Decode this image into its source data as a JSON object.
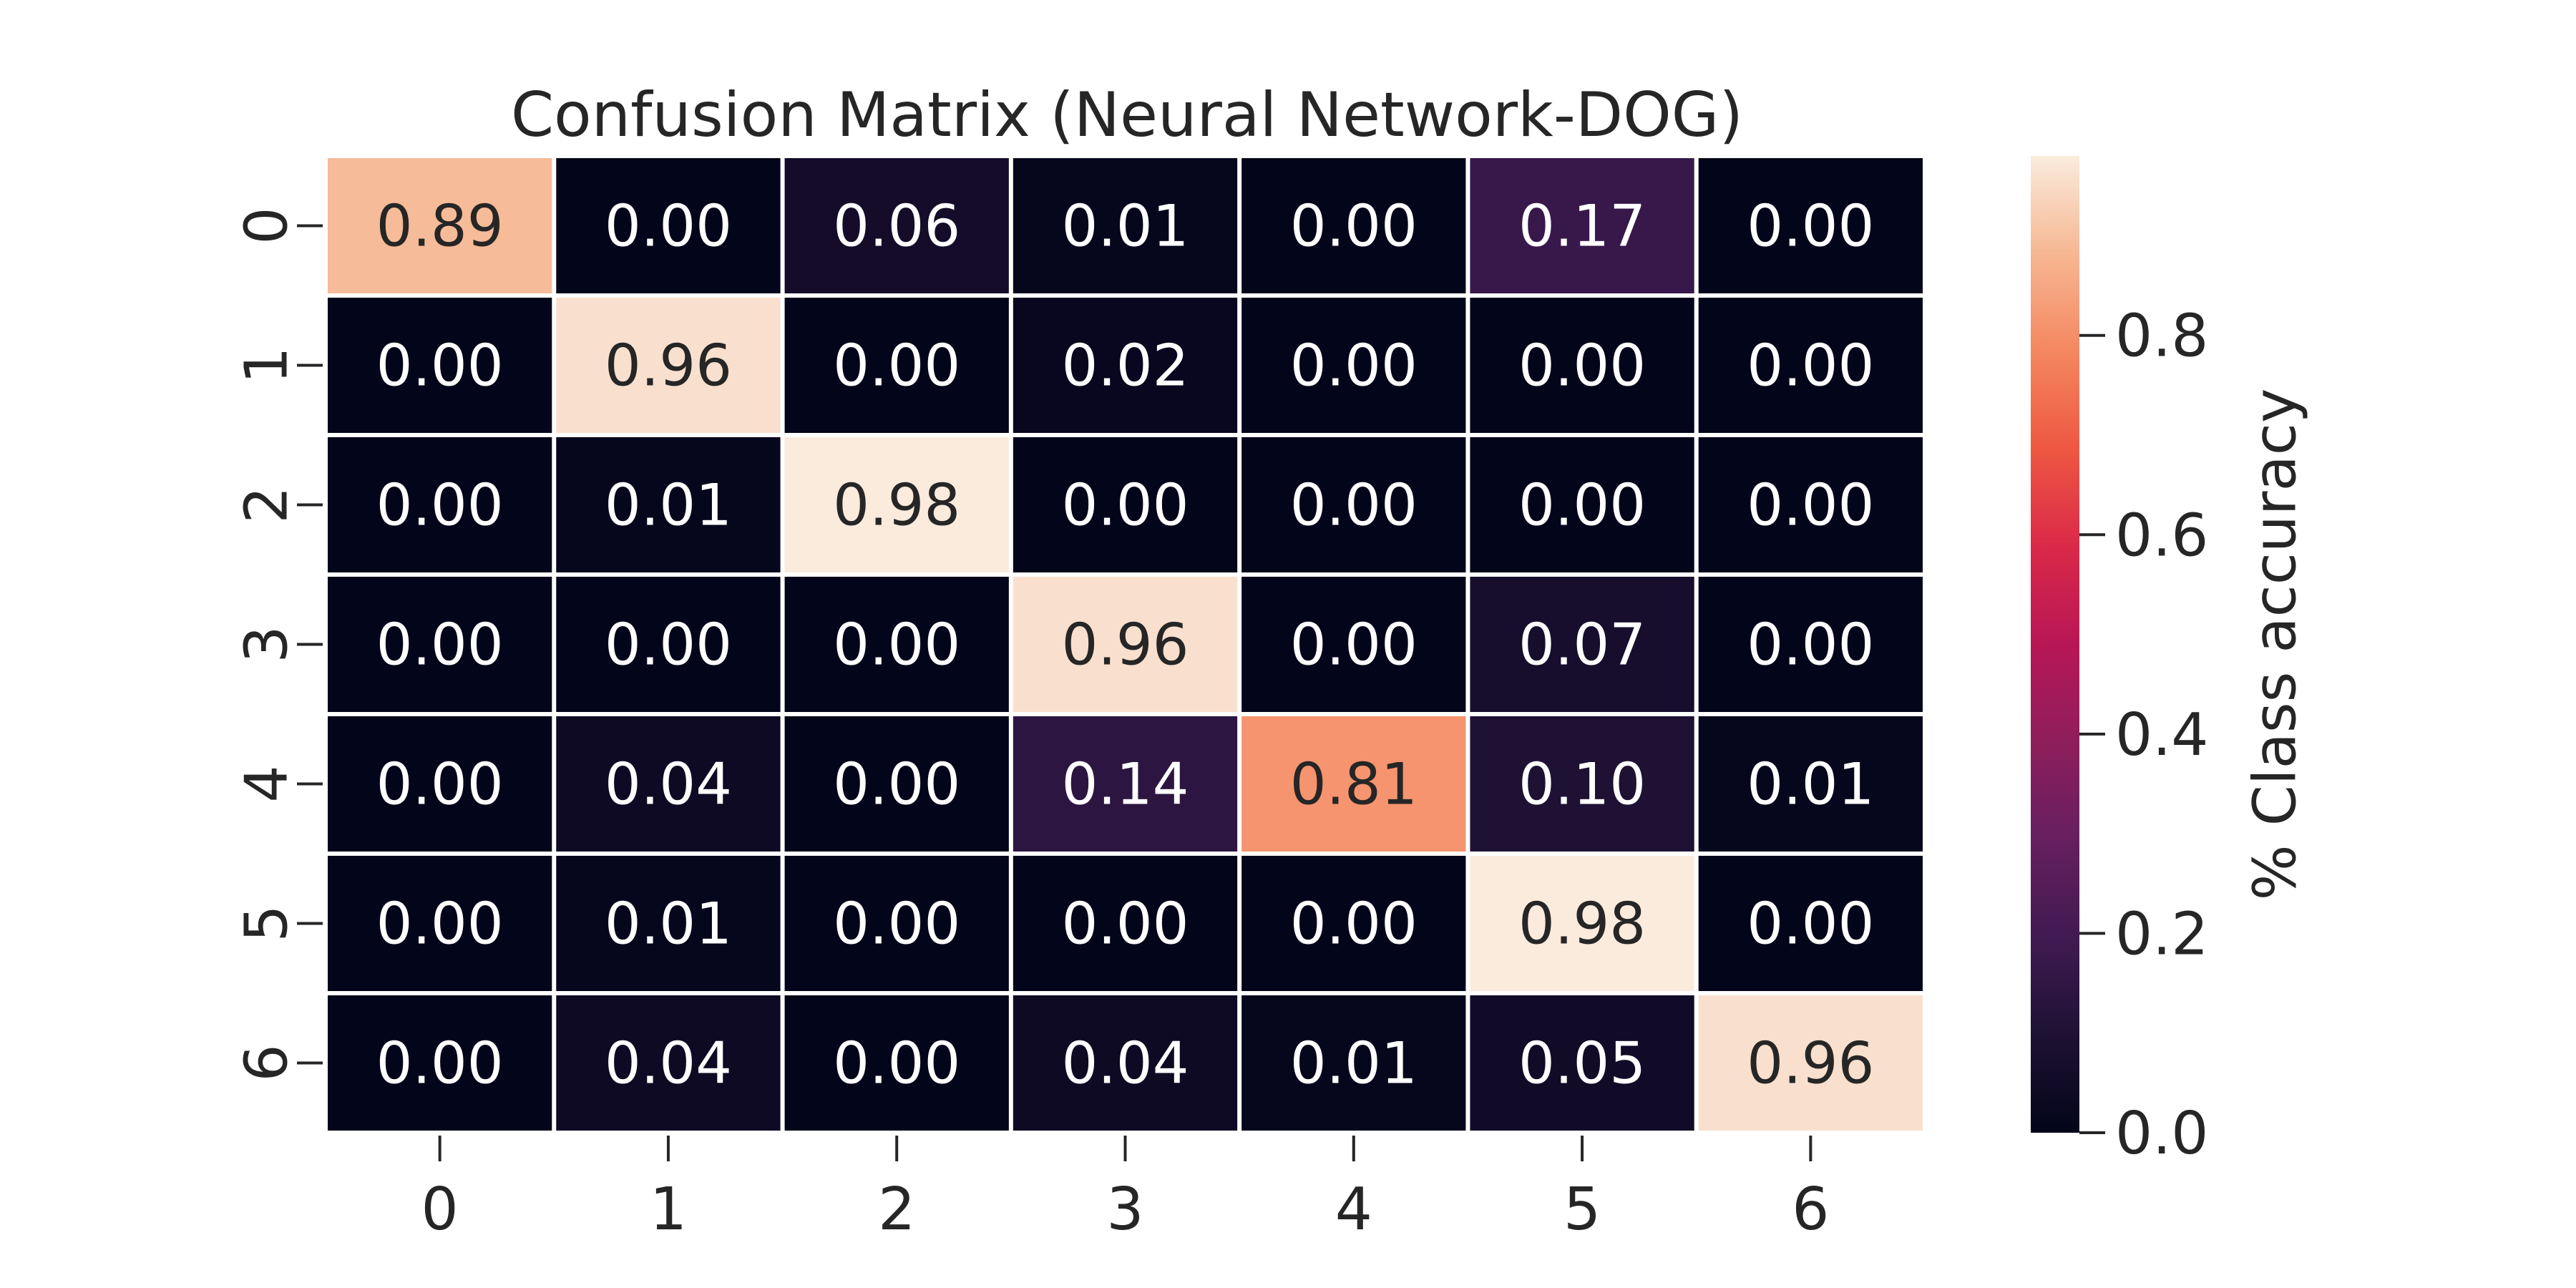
{
  "chart_data": {
    "type": "heatmap",
    "title": "Confusion Matrix (Neural Network-DOG)",
    "x_categories": [
      "0",
      "1",
      "2",
      "3",
      "4",
      "5",
      "6"
    ],
    "y_categories": [
      "0",
      "1",
      "2",
      "3",
      "4",
      "5",
      "6"
    ],
    "values": [
      [
        0.89,
        0.0,
        0.06,
        0.01,
        0.0,
        0.17,
        0.0
      ],
      [
        0.0,
        0.96,
        0.0,
        0.02,
        0.0,
        0.0,
        0.0
      ],
      [
        0.0,
        0.01,
        0.98,
        0.0,
        0.0,
        0.0,
        0.0
      ],
      [
        0.0,
        0.0,
        0.0,
        0.96,
        0.0,
        0.07,
        0.0
      ],
      [
        0.0,
        0.04,
        0.0,
        0.14,
        0.81,
        0.1,
        0.01
      ],
      [
        0.0,
        0.01,
        0.0,
        0.0,
        0.0,
        0.98,
        0.0
      ],
      [
        0.0,
        0.04,
        0.0,
        0.04,
        0.01,
        0.05,
        0.96
      ]
    ],
    "cell_labels": [
      [
        "0.89",
        "0.00",
        "0.06",
        "0.01",
        "0.00",
        "0.17",
        "0.00"
      ],
      [
        "0.00",
        "0.96",
        "0.00",
        "0.02",
        "0.00",
        "0.00",
        "0.00"
      ],
      [
        "0.00",
        "0.01",
        "0.98",
        "0.00",
        "0.00",
        "0.00",
        "0.00"
      ],
      [
        "0.00",
        "0.00",
        "0.00",
        "0.96",
        "0.00",
        "0.07",
        "0.00"
      ],
      [
        "0.00",
        "0.04",
        "0.00",
        "0.14",
        "0.81",
        "0.10",
        "0.01"
      ],
      [
        "0.00",
        "0.01",
        "0.00",
        "0.00",
        "0.00",
        "0.98",
        "0.00"
      ],
      [
        "0.00",
        "0.04",
        "0.00",
        "0.04",
        "0.01",
        "0.05",
        "0.96"
      ]
    ],
    "colormap": "rocket",
    "colorbar": {
      "label": "% Class accuracy",
      "range": [
        0,
        0.98
      ],
      "ticks": [
        0.0,
        0.2,
        0.4,
        0.6,
        0.8
      ],
      "tick_labels": [
        "0.0",
        "0.2",
        "0.4",
        "0.6",
        "0.8"
      ],
      "placement": "right"
    }
  }
}
